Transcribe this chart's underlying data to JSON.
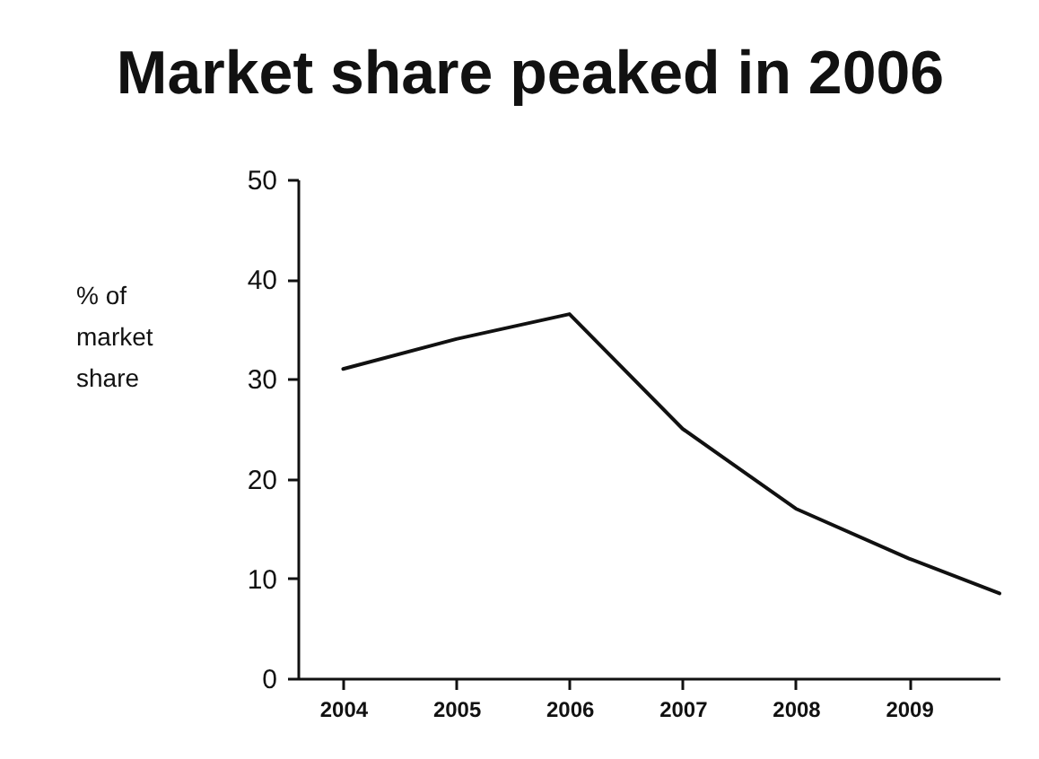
{
  "chart_data": {
    "type": "line",
    "title": "Market share peaked in 2006",
    "ylabel": "% of market share",
    "x": [
      2004,
      2005,
      2006,
      2007,
      2008,
      2009,
      2009.8
    ],
    "series": [
      {
        "color": "#111111",
        "values": [
          31,
          34,
          36.5,
          25,
          17,
          12,
          8.5
        ]
      }
    ],
    "xlim": [
      2003.6,
      2009.8
    ],
    "xticks": [
      2004,
      2005,
      2006,
      2007,
      2008,
      2009
    ],
    "ylim": [
      0,
      50
    ],
    "yticks": [
      0,
      10,
      20,
      30,
      40,
      50
    ],
    "grid": false,
    "marker": "none",
    "line_style": "solid"
  }
}
